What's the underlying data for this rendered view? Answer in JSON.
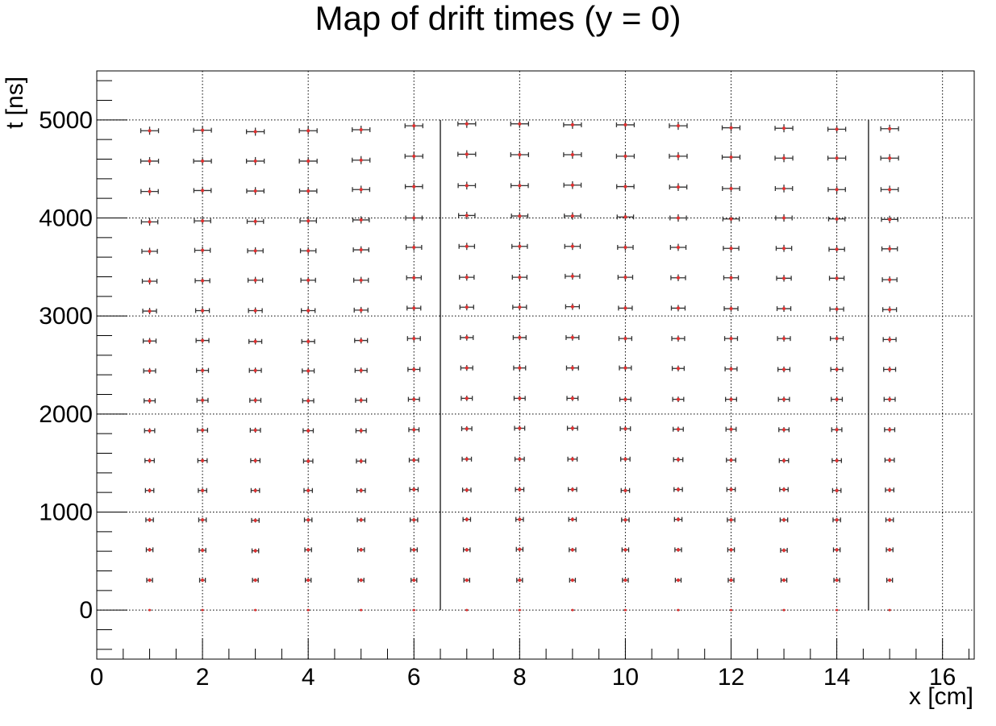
{
  "chart_data": {
    "type": "scatter",
    "title": "Map of drift times (y = 0)",
    "xlabel": "x [cm]",
    "ylabel": "t [ns]",
    "xlim": [
      0,
      16.6
    ],
    "ylim": [
      -500,
      5500
    ],
    "xticks": [
      0,
      2,
      4,
      6,
      8,
      10,
      12,
      14,
      16
    ],
    "yticks": [
      0,
      1000,
      2000,
      3000,
      4000,
      5000
    ],
    "grid": true,
    "error_bars": true,
    "boundary_lines_x": [
      6.5,
      14.6
    ],
    "boundary_line_range": [
      0,
      5000
    ],
    "x": [
      1,
      2,
      3,
      4,
      5,
      6,
      7,
      8,
      9,
      10,
      11,
      12,
      13,
      14,
      15
    ],
    "rows_nominal_t": [
      0,
      305,
      610,
      915,
      1220,
      1525,
      1830,
      2135,
      2440,
      2745,
      3050,
      3355,
      3660,
      3965,
      4270,
      4575,
      4880
    ],
    "series": [
      {
        "x": 1,
        "t": [
          0,
          305,
          615,
          920,
          1220,
          1525,
          1830,
          2135,
          2440,
          2745,
          3050,
          3355,
          3660,
          3960,
          4270,
          4580,
          4890
        ]
      },
      {
        "x": 2,
        "t": [
          0,
          305,
          610,
          920,
          1220,
          1525,
          1835,
          2140,
          2445,
          2750,
          3055,
          3360,
          3670,
          3970,
          4280,
          4580,
          4895
        ]
      },
      {
        "x": 3,
        "t": [
          0,
          305,
          605,
          915,
          1220,
          1525,
          1835,
          2140,
          2445,
          2740,
          3055,
          3365,
          3665,
          3965,
          4275,
          4580,
          4880
        ]
      },
      {
        "x": 4,
        "t": [
          0,
          305,
          615,
          920,
          1220,
          1520,
          1830,
          2135,
          2440,
          2740,
          3055,
          3365,
          3665,
          3970,
          4275,
          4580,
          4890
        ]
      },
      {
        "x": 5,
        "t": [
          0,
          305,
          615,
          920,
          1220,
          1520,
          1830,
          2140,
          2445,
          2750,
          3060,
          3365,
          3675,
          3980,
          4290,
          4590,
          4900
        ]
      },
      {
        "x": 6,
        "t": [
          0,
          305,
          615,
          920,
          1230,
          1530,
          1840,
          2150,
          2455,
          2770,
          3080,
          3390,
          3700,
          4000,
          4320,
          4630,
          4940
        ]
      },
      {
        "x": 7,
        "t": [
          0,
          305,
          615,
          925,
          1225,
          1540,
          1850,
          2160,
          2470,
          2780,
          3090,
          3395,
          3710,
          4025,
          4330,
          4650,
          4960
        ]
      },
      {
        "x": 8,
        "t": [
          0,
          305,
          620,
          925,
          1230,
          1540,
          1855,
          2160,
          2470,
          2780,
          3090,
          3395,
          3710,
          4020,
          4330,
          4645,
          4960
        ]
      },
      {
        "x": 9,
        "t": [
          0,
          305,
          615,
          925,
          1230,
          1540,
          1855,
          2160,
          2470,
          2780,
          3095,
          3405,
          3710,
          4020,
          4335,
          4645,
          4950
        ]
      },
      {
        "x": 10,
        "t": [
          0,
          305,
          615,
          920,
          1220,
          1540,
          1850,
          2150,
          2470,
          2770,
          3080,
          3395,
          3700,
          4010,
          4320,
          4630,
          4950
        ]
      },
      {
        "x": 11,
        "t": [
          0,
          305,
          615,
          925,
          1230,
          1535,
          1845,
          2150,
          2465,
          2770,
          3080,
          3390,
          3700,
          4000,
          4315,
          4630,
          4940
        ]
      },
      {
        "x": 12,
        "t": [
          0,
          305,
          615,
          920,
          1230,
          1530,
          1845,
          2150,
          2460,
          2770,
          3075,
          3390,
          3690,
          3990,
          4300,
          4620,
          4920
        ]
      },
      {
        "x": 13,
        "t": [
          0,
          305,
          610,
          920,
          1230,
          1525,
          1840,
          2150,
          2455,
          2770,
          3075,
          3385,
          3690,
          4000,
          4300,
          4610,
          4915
        ]
      },
      {
        "x": 14,
        "t": [
          0,
          305,
          615,
          920,
          1220,
          1525,
          1840,
          2150,
          2455,
          2770,
          3070,
          3385,
          3680,
          3990,
          4290,
          4610,
          4905
        ]
      },
      {
        "x": 15,
        "t": [
          0,
          305,
          615,
          920,
          1225,
          1530,
          1840,
          2150,
          2455,
          2760,
          3065,
          3370,
          3685,
          3985,
          4290,
          4610,
          4910
        ]
      }
    ],
    "colors": {
      "marker": "#e03030",
      "error_bar": "#333333",
      "frame": "#000000",
      "grid": "#000000"
    }
  }
}
